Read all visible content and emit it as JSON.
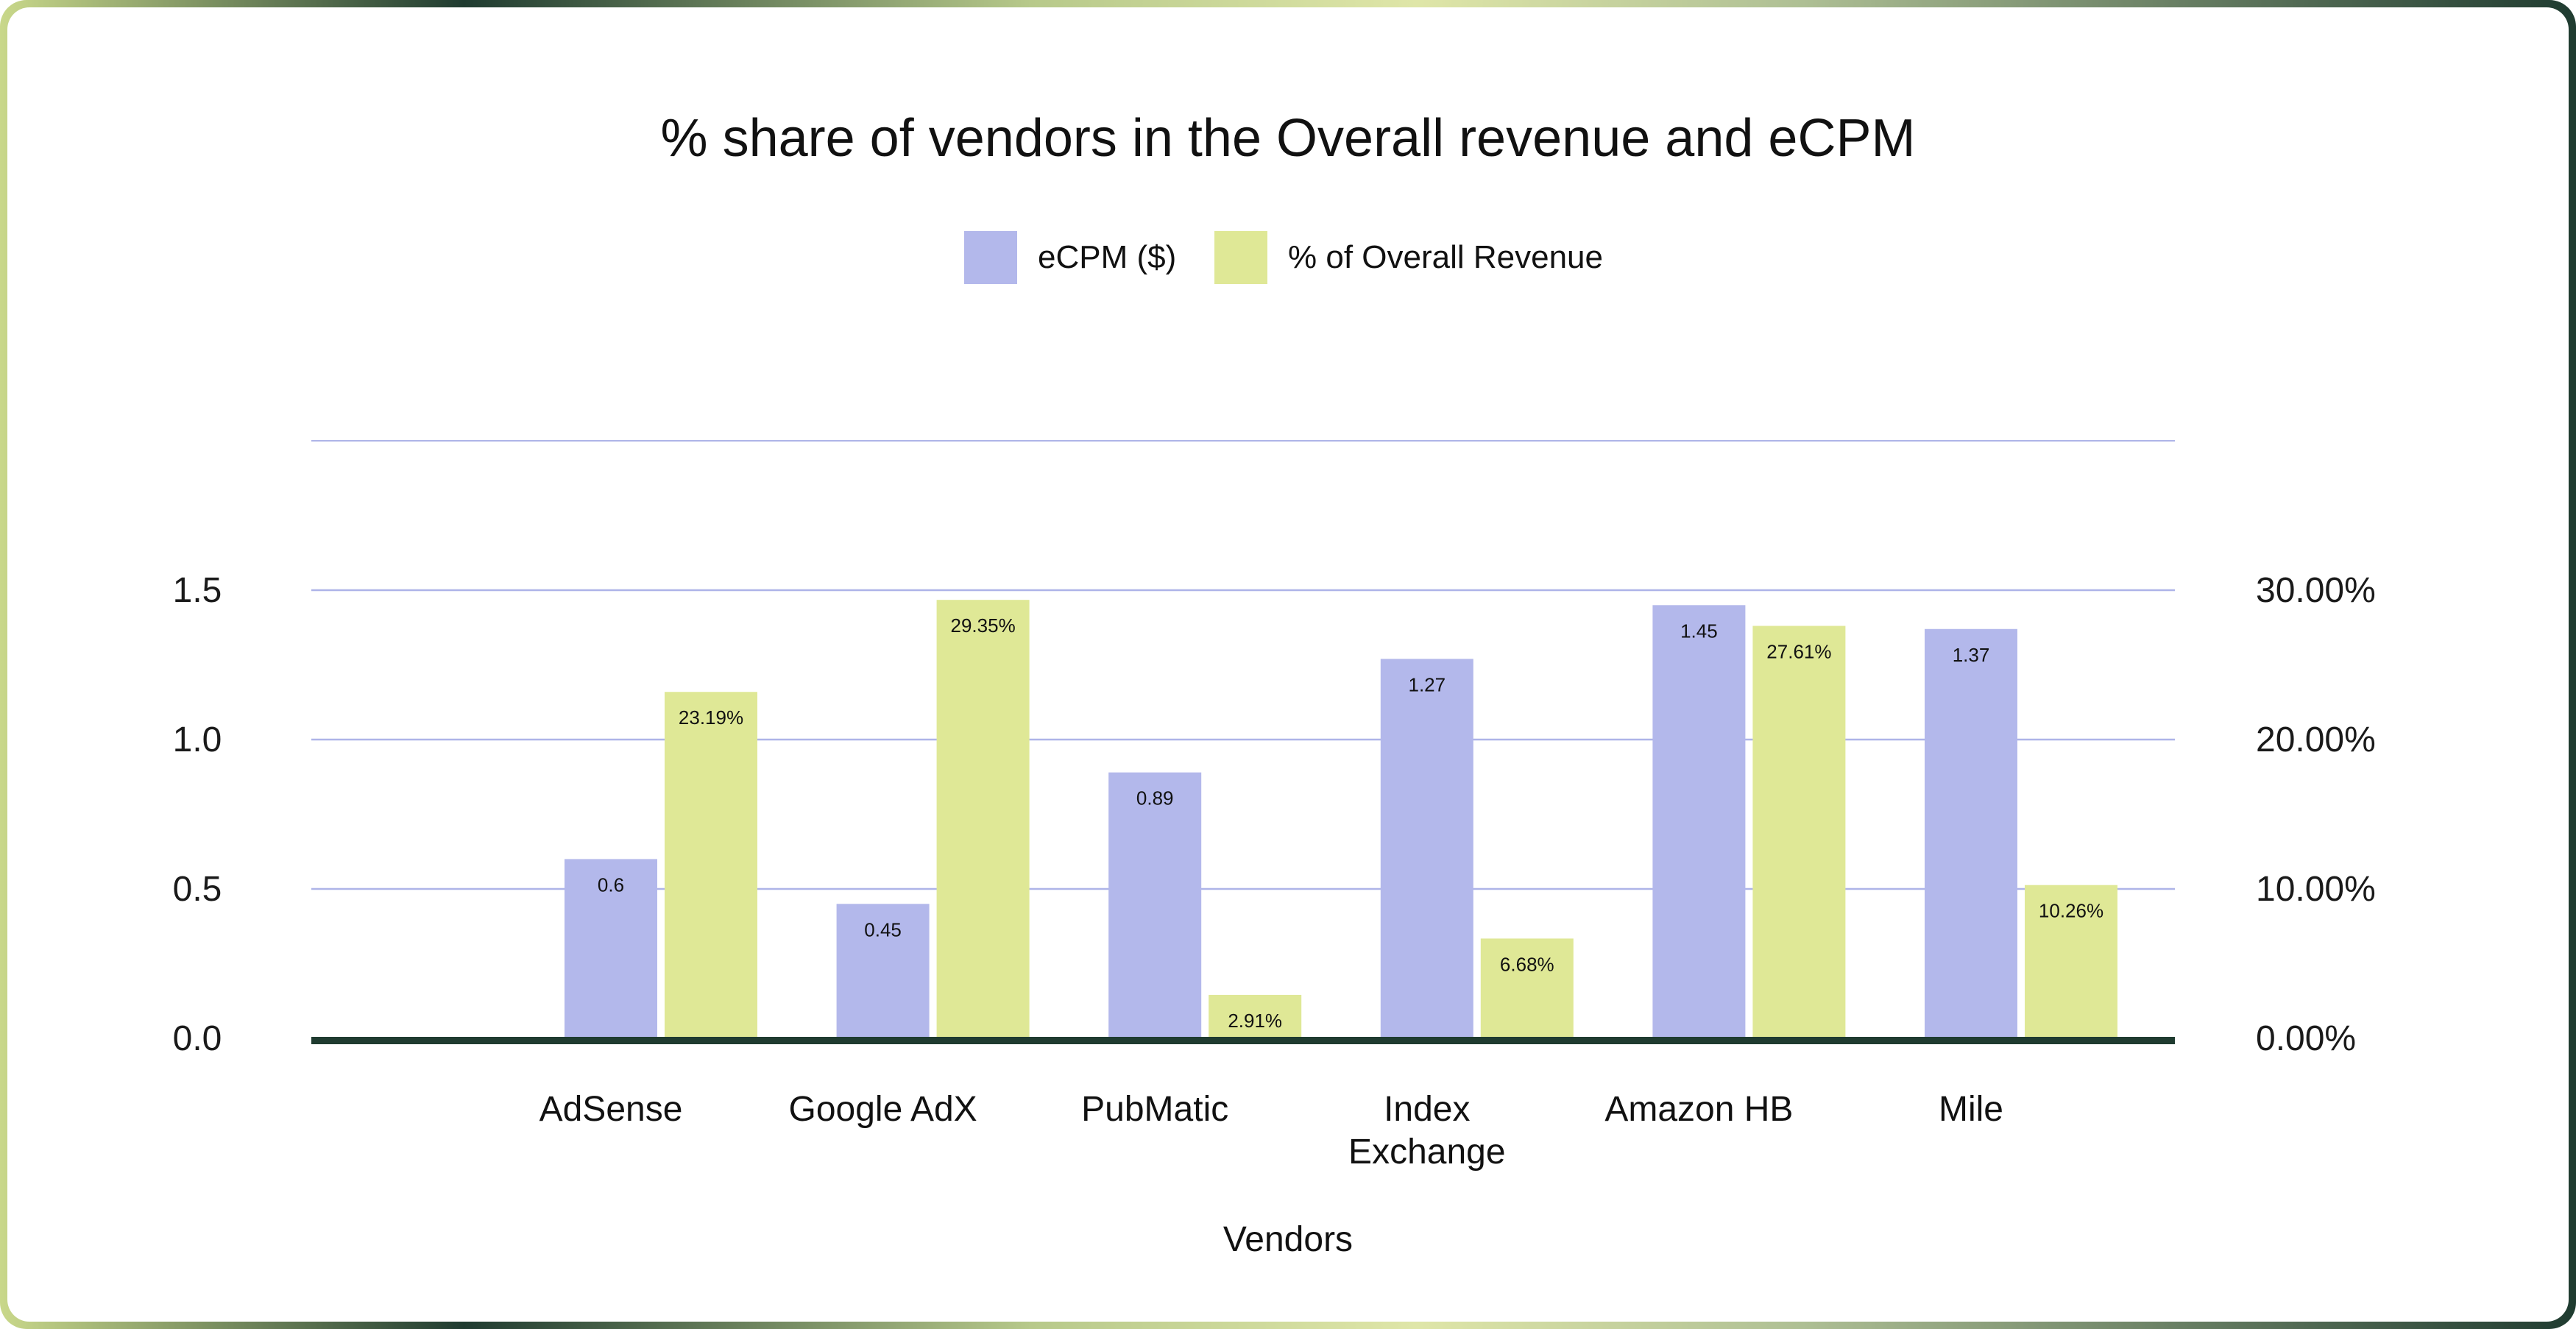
{
  "chart_data": {
    "type": "bar",
    "title": "% share of vendors in the Overall revenue and eCPM",
    "xlabel": "Vendors",
    "categories": [
      [
        "AdSense"
      ],
      [
        "Google AdX"
      ],
      [
        "PubMatic"
      ],
      [
        "Index",
        "Exchange"
      ],
      [
        "Amazon HB"
      ],
      [
        "Mile"
      ]
    ],
    "series": [
      {
        "name": "eCPM ($)",
        "axis": "left",
        "color": "#b3b8eb",
        "values": [
          0.6,
          0.45,
          0.89,
          1.27,
          1.45,
          1.37
        ],
        "labels": [
          "0.6",
          "0.45",
          "0.89",
          "1.27",
          "1.45",
          "1.37"
        ]
      },
      {
        "name": "% of Overall Revenue",
        "axis": "right",
        "color": "#dfe896",
        "values": [
          23.19,
          29.35,
          2.91,
          6.68,
          27.61,
          10.26
        ],
        "labels": [
          "23.19%",
          "29.35%",
          "2.91%",
          "6.68%",
          "27.61%",
          "10.26%"
        ]
      }
    ],
    "y_left": {
      "min": 0,
      "max": 2.0,
      "ticks": [
        0,
        0.5,
        1.0,
        1.5
      ],
      "tick_labels": [
        "0.0",
        "0.5",
        "1.0",
        "1.5"
      ]
    },
    "y_right": {
      "min": 0,
      "max": 40,
      "ticks": [
        0,
        10,
        20,
        30
      ],
      "tick_labels": [
        "0.00%",
        "10.00%",
        "20.00%",
        "30.00%"
      ]
    },
    "gridlines": [
      0.5,
      1.0,
      1.5,
      2.0
    ],
    "legend_position": "top-center",
    "colors": {
      "baseline": "#1f3b30",
      "grid": "#aeb4e8"
    }
  }
}
